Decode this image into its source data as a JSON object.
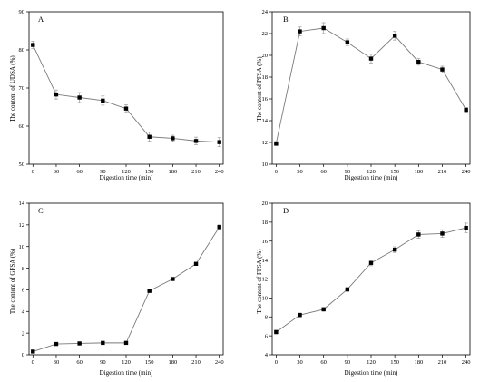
{
  "chart_data": [
    {
      "panel": "A",
      "type": "line",
      "xlabel": "Digestion time (min)",
      "ylabel": "The content of UDSA (%)",
      "x": [
        0,
        30,
        60,
        90,
        120,
        150,
        180,
        210,
        240
      ],
      "y": [
        81.3,
        68.3,
        67.5,
        66.7,
        64.6,
        57.2,
        56.8,
        56.1,
        55.8
      ],
      "err": [
        1.0,
        1.2,
        1.3,
        1.2,
        1.0,
        1.2,
        0.8,
        1.0,
        1.2
      ],
      "ylim": [
        50,
        90
      ],
      "yticks": [
        50,
        60,
        70,
        80,
        90
      ],
      "xticks": [
        0,
        30,
        60,
        90,
        120,
        150,
        180,
        210,
        240
      ]
    },
    {
      "panel": "B",
      "type": "line",
      "xlabel": "Digestion time (min)",
      "ylabel": "The content of PFSA (%)",
      "x": [
        0,
        30,
        60,
        90,
        120,
        150,
        180,
        210,
        240
      ],
      "y": [
        11.9,
        22.2,
        22.5,
        21.2,
        19.7,
        21.8,
        19.4,
        18.7,
        15.0
      ],
      "err": [
        0.2,
        0.4,
        0.5,
        0.3,
        0.4,
        0.4,
        0.3,
        0.3,
        0.2
      ],
      "ylim": [
        10,
        24
      ],
      "yticks": [
        10,
        12,
        14,
        16,
        18,
        20,
        22,
        24
      ],
      "xticks": [
        0,
        30,
        60,
        90,
        120,
        150,
        180,
        210,
        240
      ]
    },
    {
      "panel": "C",
      "type": "line",
      "xlabel": "Digestion time (min)",
      "ylabel": "The content of GFSA (%)",
      "x": [
        0,
        30,
        60,
        90,
        120,
        150,
        180,
        210,
        240
      ],
      "y": [
        0.3,
        1.0,
        1.05,
        1.1,
        1.1,
        5.9,
        7.0,
        8.4,
        11.8
      ],
      "err": [
        0.1,
        0.1,
        0.1,
        0.1,
        0.1,
        0.1,
        0.1,
        0.1,
        0.2
      ],
      "ylim": [
        0,
        14
      ],
      "yticks": [
        0,
        2,
        4,
        6,
        8,
        10,
        12,
        14
      ],
      "xticks": [
        0,
        30,
        60,
        90,
        120,
        150,
        180,
        210,
        240
      ]
    },
    {
      "panel": "D",
      "type": "line",
      "xlabel": "Digestion time (min)",
      "ylabel": "The content of FFSA (%)",
      "x": [
        0,
        30,
        60,
        90,
        120,
        150,
        180,
        210,
        240
      ],
      "y": [
        6.4,
        8.2,
        8.8,
        10.9,
        13.7,
        15.1,
        16.7,
        16.8,
        17.4
      ],
      "err": [
        0.2,
        0.2,
        0.2,
        0.2,
        0.3,
        0.3,
        0.4,
        0.4,
        0.5
      ],
      "ylim": [
        4,
        20
      ],
      "yticks": [
        4,
        6,
        8,
        10,
        12,
        14,
        16,
        18,
        20
      ],
      "xticks": [
        0,
        30,
        60,
        90,
        120,
        150,
        180,
        210,
        240
      ]
    }
  ]
}
